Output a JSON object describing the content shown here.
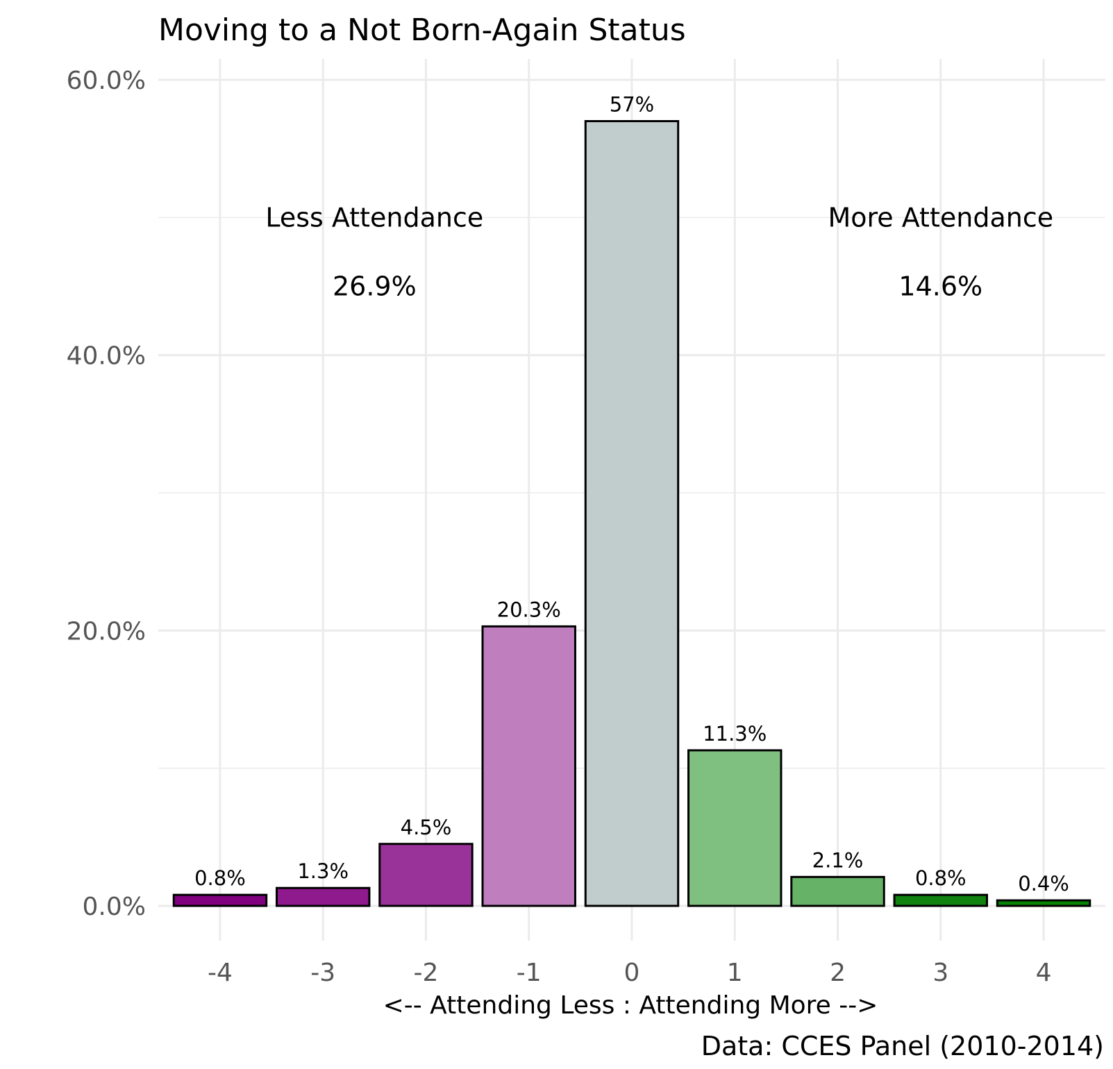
{
  "chart_data": {
    "type": "bar",
    "title": "Moving to a Not Born-Again Status",
    "xlabel": "<-- Attending Less : Attending More -->",
    "ylabel": "",
    "caption": "Data: CCES Panel (2010-2014)",
    "categories": [
      "-4",
      "-3",
      "-2",
      "-1",
      "0",
      "1",
      "2",
      "3",
      "4"
    ],
    "values": [
      0.8,
      1.3,
      4.5,
      20.3,
      57,
      11.3,
      2.1,
      0.8,
      0.4
    ],
    "value_labels": [
      "0.8%",
      "1.3%",
      "4.5%",
      "20.3%",
      "57%",
      "11.3%",
      "2.1%",
      "0.8%",
      "0.4%"
    ],
    "colors": [
      "#800080",
      "#8e1a8e",
      "#993399",
      "#bf7fbf",
      "#c1cdcd",
      "#7fbf7f",
      "#66b266",
      "#0f820f",
      "#078307"
    ],
    "ylim": [
      0,
      60
    ],
    "y_ticks": [
      0,
      20,
      40,
      60
    ],
    "y_tick_labels": [
      "0.0%",
      "20.0%",
      "40.0%",
      "60.0%"
    ],
    "grid": true,
    "legend": "none",
    "annotations": [
      {
        "text": "Less Attendance",
        "x": -2.5,
        "y": 50
      },
      {
        "text": "26.9%",
        "x": -2.5,
        "y": 45
      },
      {
        "text": "More Attendance",
        "x": 3,
        "y": 50
      },
      {
        "text": "14.6%",
        "x": 3,
        "y": 45
      }
    ]
  }
}
